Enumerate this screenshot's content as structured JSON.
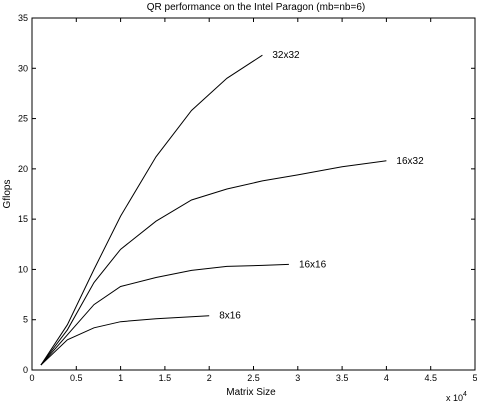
{
  "chart_data": {
    "type": "line",
    "title": "QR performance on the Intel Paragon (mb=nb=6)",
    "xlabel": "Matrix Size",
    "ylabel": "Gflops",
    "x_multiplier_label": "x 10",
    "x_multiplier_exponent": "4",
    "xlim": [
      0,
      5
    ],
    "ylim": [
      0,
      35
    ],
    "xticks": [
      0,
      0.5,
      1,
      1.5,
      2,
      2.5,
      3,
      3.5,
      4,
      4.5,
      5
    ],
    "xtick_labels": [
      "0",
      "0.5",
      "1",
      "1.5",
      "2",
      "2.5",
      "3",
      "3.5",
      "4",
      "4.5",
      "5"
    ],
    "yticks": [
      0,
      5,
      10,
      15,
      20,
      25,
      30,
      35
    ],
    "ytick_labels": [
      "0",
      "5",
      "10",
      "15",
      "20",
      "25",
      "30",
      "35"
    ],
    "grid": false,
    "legend": "none",
    "series": [
      {
        "name": "32x32",
        "x": [
          0.1,
          0.4,
          0.7,
          1.0,
          1.4,
          1.8,
          2.2,
          2.6
        ],
        "y": [
          0.5,
          4.5,
          10.0,
          15.3,
          21.2,
          25.8,
          29.0,
          31.3
        ]
      },
      {
        "name": "16x32",
        "x": [
          0.1,
          0.4,
          0.7,
          1.0,
          1.4,
          1.8,
          2.2,
          2.6,
          3.0,
          3.5,
          4.0
        ],
        "y": [
          0.5,
          4.0,
          8.7,
          12.0,
          14.8,
          16.9,
          18.0,
          18.8,
          19.4,
          20.2,
          20.8
        ]
      },
      {
        "name": "16x16",
        "x": [
          0.1,
          0.4,
          0.7,
          1.0,
          1.4,
          1.8,
          2.2,
          2.6,
          2.9
        ],
        "y": [
          0.5,
          3.5,
          6.5,
          8.3,
          9.2,
          9.9,
          10.3,
          10.4,
          10.5
        ]
      },
      {
        "name": "8x16",
        "x": [
          0.1,
          0.4,
          0.7,
          1.0,
          1.4,
          1.8,
          2.0
        ],
        "y": [
          0.5,
          3.0,
          4.2,
          4.8,
          5.1,
          5.3,
          5.4
        ]
      }
    ]
  }
}
